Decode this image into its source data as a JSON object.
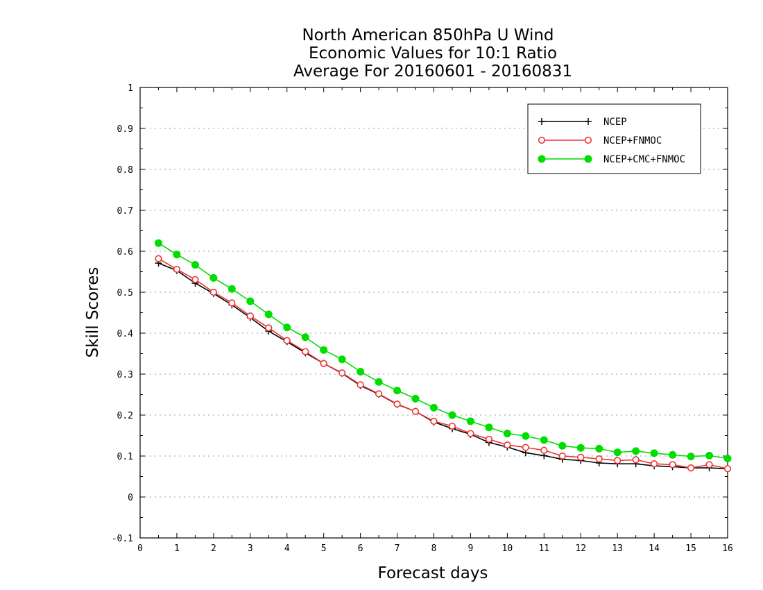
{
  "chart_data": {
    "type": "line",
    "title_lines": [
      "North American 850hPa U Wind",
      "Economic Values for 10:1 Ratio",
      "Average For 20160601 - 20160831"
    ],
    "xlabel": "Forecast days",
    "ylabel": "Skill Scores",
    "xlim": [
      0,
      16
    ],
    "ylim": [
      -0.1,
      1
    ],
    "xticks": [
      0,
      1,
      2,
      3,
      4,
      5,
      6,
      7,
      8,
      9,
      10,
      11,
      12,
      13,
      14,
      15,
      16
    ],
    "yticks": [
      -0.1,
      0,
      0.1,
      0.2,
      0.3,
      0.4,
      0.5,
      0.6,
      0.7,
      0.8,
      0.9,
      1
    ],
    "ytick_labels": [
      "-0.1",
      "0",
      "0.1",
      "0.2",
      "0.3",
      "0.4",
      "0.5",
      "0.6",
      "0.7",
      "0.8",
      "0.9",
      "1"
    ],
    "grid": "horizontal dotted",
    "legend_position": "top-right",
    "x": [
      0.5,
      1,
      1.5,
      2,
      2.5,
      3,
      3.5,
      4,
      4.5,
      5,
      5.5,
      6,
      6.5,
      7,
      7.5,
      8,
      8.5,
      9,
      9.5,
      10,
      10.5,
      11,
      11.5,
      12,
      12.5,
      13,
      13.5,
      14,
      14.5,
      15,
      15.5,
      16
    ],
    "series": [
      {
        "name": "NCEP",
        "color": "#000000",
        "marker": "plus",
        "values": [
          0.571,
          0.553,
          0.522,
          0.497,
          0.469,
          0.438,
          0.405,
          0.379,
          0.352,
          0.326,
          0.302,
          0.272,
          0.251,
          0.226,
          0.209,
          0.183,
          0.167,
          0.153,
          0.133,
          0.122,
          0.108,
          0.101,
          0.092,
          0.089,
          0.083,
          0.081,
          0.081,
          0.076,
          0.074,
          0.071,
          0.071,
          0.069
        ]
      },
      {
        "name": "NCEP+FNMOC",
        "color": "#ee3333",
        "marker": "open-circle",
        "values": [
          0.582,
          0.556,
          0.531,
          0.5,
          0.474,
          0.442,
          0.413,
          0.382,
          0.355,
          0.326,
          0.303,
          0.274,
          0.252,
          0.227,
          0.209,
          0.185,
          0.173,
          0.155,
          0.141,
          0.127,
          0.121,
          0.114,
          0.1,
          0.097,
          0.093,
          0.089,
          0.091,
          0.081,
          0.079,
          0.071,
          0.079,
          0.069
        ]
      },
      {
        "name": "NCEP+CMC+FNMOC",
        "color": "#00dd00",
        "marker": "filled-circle",
        "values": [
          0.62,
          0.592,
          0.567,
          0.535,
          0.508,
          0.478,
          0.446,
          0.414,
          0.39,
          0.359,
          0.336,
          0.306,
          0.281,
          0.26,
          0.24,
          0.218,
          0.2,
          0.185,
          0.17,
          0.155,
          0.149,
          0.139,
          0.125,
          0.12,
          0.118,
          0.109,
          0.112,
          0.107,
          0.103,
          0.099,
          0.101,
          0.094
        ]
      }
    ]
  }
}
